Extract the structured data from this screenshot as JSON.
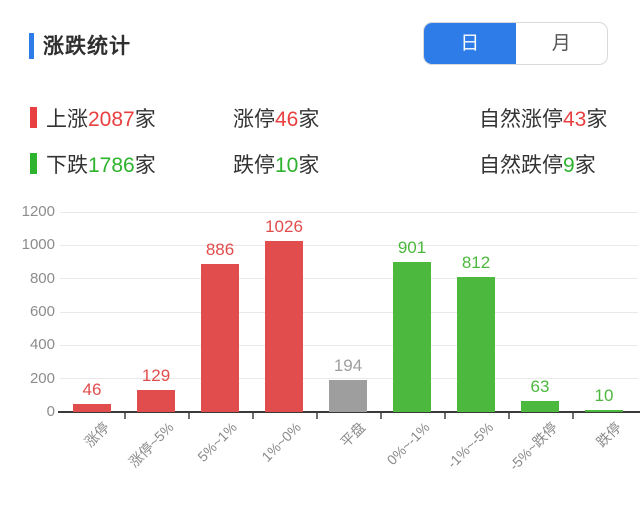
{
  "header": {
    "title": "涨跌统计",
    "toggle": {
      "day": "日",
      "month": "月",
      "active": "日"
    }
  },
  "summary": {
    "rows": [
      {
        "name": "up",
        "items": [
          {
            "label": "上涨",
            "value": "2087",
            "unit": "家"
          },
          {
            "label": "涨停",
            "value": "46",
            "unit": "家"
          },
          {
            "label": "自然涨停",
            "value": "43",
            "unit": "家"
          }
        ]
      },
      {
        "name": "down",
        "items": [
          {
            "label": "下跌",
            "value": "1786",
            "unit": "家"
          },
          {
            "label": "跌停",
            "value": "10",
            "unit": "家"
          },
          {
            "label": "自然跌停",
            "value": "9",
            "unit": "家"
          }
        ]
      }
    ]
  },
  "chart_data": {
    "type": "bar",
    "title": "涨跌统计",
    "categories": [
      "涨停",
      "涨停~5%",
      "5%~1%",
      "1%~0%",
      "平盘",
      "0%~-1%",
      "-1%~-5%",
      "-5%~跌停",
      "跌停"
    ],
    "values": [
      46,
      129,
      886,
      1026,
      194,
      901,
      812,
      63,
      10
    ],
    "bar_colors": [
      "#e14d4d",
      "#e14d4d",
      "#e14d4d",
      "#e14d4d",
      "#9e9e9e",
      "#4cb83e",
      "#4cb83e",
      "#4cb83e",
      "#4cb83e"
    ],
    "xlabel": "",
    "ylabel": "",
    "ylim": [
      0,
      1200
    ],
    "yticks": [
      0,
      200,
      400,
      600,
      800,
      1000,
      1200
    ],
    "grid": true,
    "legend": "none",
    "x_label_rotation": -45
  },
  "colors": {
    "accent_blue": "#2e7ce8",
    "up_red": "#e84040",
    "down_green": "#2db32d",
    "bar_red": "#e14d4d",
    "bar_green": "#4cb83e",
    "bar_gray": "#9e9e9e",
    "axis_text": "#8c8c8c",
    "gridline": "#e9e9e9"
  }
}
